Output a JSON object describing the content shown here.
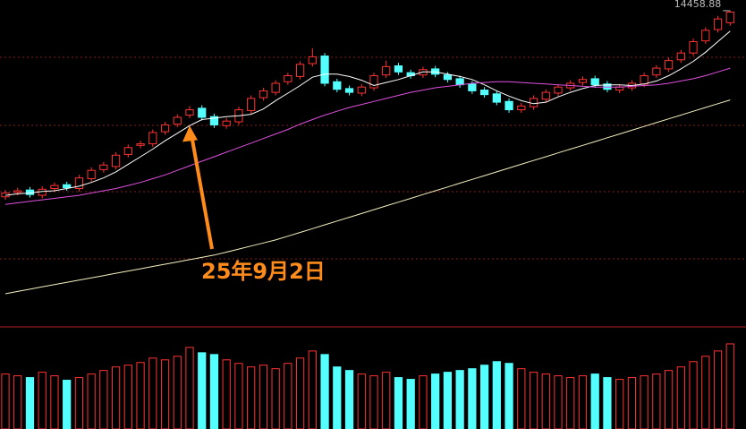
{
  "chart_data": [
    {
      "type": "candlestick",
      "ylim": [
        10400,
        14600
      ],
      "up_color": "#ff3232",
      "down_color": "#54ffff",
      "open": [
        12000,
        12060,
        12090,
        12020,
        12110,
        12160,
        12110,
        12240,
        12360,
        12400,
        12560,
        12680,
        12700,
        12860,
        12960,
        13080,
        13170,
        13060,
        12940,
        12990,
        13140,
        13310,
        13380,
        13520,
        13590,
        13760,
        13860,
        13520,
        13430,
        13370,
        13440,
        13610,
        13730,
        13640,
        13610,
        13690,
        13610,
        13560,
        13490,
        13410,
        13360,
        13260,
        13150,
        13190,
        13290,
        13370,
        13440,
        13510,
        13560,
        13490,
        13410,
        13440,
        13490,
        13610,
        13690,
        13810,
        13900,
        14060,
        14210,
        14300
      ],
      "high": [
        12090,
        12120,
        12130,
        12140,
        12190,
        12200,
        12290,
        12390,
        12460,
        12590,
        12690,
        12740,
        12890,
        12990,
        13090,
        13200,
        13210,
        13100,
        13040,
        13190,
        13340,
        13440,
        13540,
        13640,
        13790,
        13960,
        13900,
        13560,
        13470,
        13490,
        13640,
        13800,
        13770,
        13680,
        13720,
        13730,
        13650,
        13600,
        13530,
        13450,
        13400,
        13300,
        13240,
        13340,
        13420,
        13490,
        13540,
        13590,
        13600,
        13530,
        13490,
        13540,
        13640,
        13740,
        13840,
        13940,
        14090,
        14240,
        14390,
        14458.88
      ],
      "low": [
        11960,
        12020,
        11990,
        11980,
        12070,
        12080,
        12070,
        12200,
        12320,
        12360,
        12520,
        12640,
        12660,
        12820,
        12920,
        13040,
        13010,
        12910,
        12900,
        12950,
        13100,
        13270,
        13340,
        13480,
        13550,
        13720,
        13460,
        13380,
        13340,
        13330,
        13400,
        13570,
        13610,
        13560,
        13570,
        13580,
        13510,
        13440,
        13360,
        13310,
        13210,
        13110,
        13110,
        13150,
        13250,
        13330,
        13400,
        13470,
        13440,
        13380,
        13370,
        13400,
        13450,
        13570,
        13650,
        13770,
        13860,
        14020,
        14170,
        14260
      ],
      "close": [
        12050,
        12080,
        12030,
        12100,
        12150,
        12120,
        12250,
        12350,
        12420,
        12550,
        12650,
        12700,
        12850,
        12950,
        13050,
        13150,
        13050,
        12950,
        13000,
        13150,
        13300,
        13400,
        13500,
        13600,
        13750,
        13850,
        13500,
        13420,
        13380,
        13450,
        13600,
        13720,
        13650,
        13600,
        13680,
        13620,
        13550,
        13480,
        13400,
        13350,
        13250,
        13150,
        13200,
        13300,
        13380,
        13450,
        13500,
        13550,
        13480,
        13420,
        13450,
        13500,
        13600,
        13700,
        13800,
        13900,
        14050,
        14200,
        14350,
        14440
      ],
      "lines": [
        {
          "color": "#ffffff",
          "values": [
            12020,
            12040,
            12050,
            12070,
            12080,
            12110,
            12140,
            12190,
            12250,
            12330,
            12430,
            12530,
            12630,
            12740,
            12840,
            12940,
            13020,
            13040,
            13060,
            13070,
            13090,
            13160,
            13270,
            13370,
            13470,
            13580,
            13620,
            13620,
            13590,
            13540,
            13470,
            13510,
            13550,
            13600,
            13650,
            13650,
            13620,
            13590,
            13550,
            13480,
            13400,
            13330,
            13270,
            13230,
            13250,
            13320,
            13380,
            13430,
            13470,
            13480,
            13480,
            13470,
            13490,
            13530,
            13600,
            13690,
            13790,
            13910,
            14050,
            14190
          ]
        },
        {
          "color": "#e050e0",
          "values": [
            11900,
            11920,
            11940,
            11960,
            11980,
            12000,
            12020,
            12050,
            12080,
            12110,
            12150,
            12190,
            12240,
            12290,
            12350,
            12410,
            12470,
            12530,
            12590,
            12650,
            12710,
            12770,
            12830,
            12890,
            12960,
            13020,
            13080,
            13130,
            13180,
            13220,
            13260,
            13300,
            13340,
            13380,
            13410,
            13440,
            13460,
            13480,
            13500,
            13510,
            13520,
            13520,
            13510,
            13500,
            13490,
            13480,
            13470,
            13460,
            13450,
            13450,
            13450,
            13460,
            13470,
            13480,
            13500,
            13530,
            13560,
            13600,
            13650,
            13700
          ]
        },
        {
          "color": "#f5f0c0",
          "values": [
            10720,
            10750,
            10780,
            10810,
            10840,
            10870,
            10900,
            10930,
            10960,
            10990,
            11020,
            11050,
            11080,
            11110,
            11140,
            11170,
            11200,
            11230,
            11270,
            11310,
            11350,
            11390,
            11430,
            11480,
            11530,
            11580,
            11630,
            11680,
            11730,
            11780,
            11830,
            11880,
            11930,
            11980,
            12030,
            12080,
            12130,
            12180,
            12230,
            12280,
            12330,
            12380,
            12430,
            12480,
            12530,
            12580,
            12630,
            12680,
            12730,
            12780,
            12830,
            12880,
            12930,
            12980,
            13030,
            13080,
            13130,
            13180,
            13230,
            13280
          ]
        }
      ],
      "annotation": {
        "text": "25年9月2日",
        "at": 15,
        "color": "#ff8c1a"
      }
    },
    {
      "type": "volume",
      "ylim": [
        0,
        100
      ],
      "values": [
        62,
        60,
        58,
        64,
        60,
        55,
        58,
        62,
        66,
        70,
        72,
        75,
        80,
        78,
        82,
        92,
        86,
        84,
        78,
        74,
        70,
        72,
        68,
        74,
        80,
        88,
        84,
        70,
        66,
        62,
        60,
        64,
        58,
        56,
        60,
        62,
        64,
        66,
        68,
        72,
        76,
        74,
        68,
        64,
        62,
        60,
        58,
        60,
        62,
        58,
        56,
        58,
        60,
        62,
        66,
        70,
        76,
        82,
        88,
        96
      ]
    }
  ]
}
